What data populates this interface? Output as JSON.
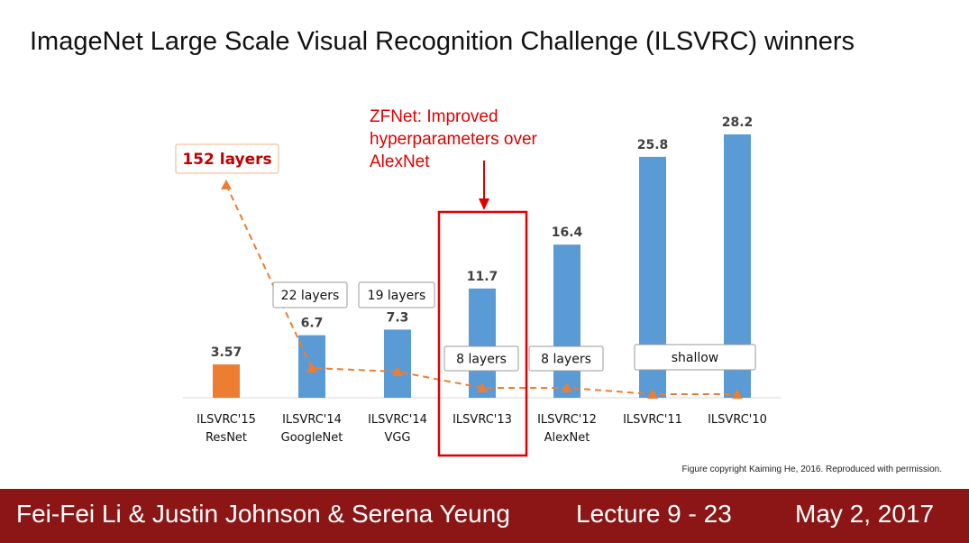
{
  "slide": {
    "title": "ImageNet Large Scale Visual Recognition Challenge (ILSVRC) winners",
    "caption": "Figure copyright Kaiming He, 2016. Reproduced with permission."
  },
  "footer": {
    "authors": "Fei-Fei Li & Justin Johnson & Serena Yeung",
    "lecture": "Lecture 9 - 23",
    "date": "May 2, 2017"
  },
  "chart_data": {
    "type": "bar",
    "categories": [
      [
        "ILSVRC'15",
        "ResNet"
      ],
      [
        "ILSVRC'14",
        "GoogleNet"
      ],
      [
        "ILSVRC'14",
        "VGG"
      ],
      [
        "ILSVRC'13"
      ],
      [
        "ILSVRC'12",
        "AlexNet"
      ],
      [
        "ILSVRC'11"
      ],
      [
        "ILSVRC'10"
      ]
    ],
    "values": [
      3.57,
      6.7,
      7.3,
      11.7,
      16.4,
      25.8,
      28.2
    ],
    "value_labels": [
      "3.57",
      "6.7",
      "7.3",
      "11.7",
      "16.4",
      "25.8",
      "28.2"
    ],
    "bar_colors": [
      "#ed7d31",
      "#5b9bd5",
      "#5b9bd5",
      "#5b9bd5",
      "#5b9bd5",
      "#5b9bd5",
      "#5b9bd5"
    ],
    "layer_labels": [
      "152 layers",
      "22 layers",
      "19 layers",
      "8 layers",
      "8 layers",
      "shallow"
    ],
    "layer_values": [
      152,
      22,
      19,
      8,
      8,
      0,
      0
    ],
    "trend_color": "#ed7d31",
    "highlight_index": 3,
    "highlight_color": "#e00000",
    "annotation": [
      "ZFNet: Improved",
      "hyperparameters over",
      "AlexNet"
    ],
    "ylim": [
      0,
      28.2
    ],
    "xlabel": "",
    "ylabel": ""
  }
}
